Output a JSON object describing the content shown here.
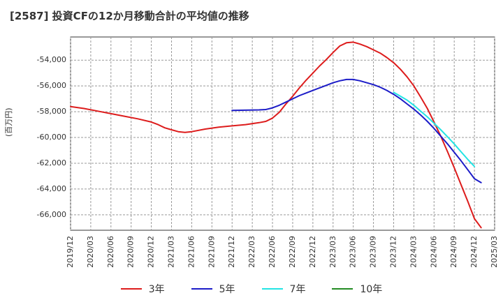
{
  "title": "[2587]  投資CFの12か月移動合計の平均値の推移",
  "chart_data": {
    "type": "line",
    "title": "[2587]  投資CFの12か月移動合計の平均値の推移",
    "ylabel": "(百万円)",
    "xlabel": "",
    "ylim": [
      -67200,
      -52200
    ],
    "yticks": [
      -54000,
      -56000,
      -58000,
      -60000,
      -62000,
      -64000,
      -66000
    ],
    "ytick_labels": [
      "-54,000",
      "-56,000",
      "-58,000",
      "-60,000",
      "-62,000",
      "-64,000",
      "-66,000"
    ],
    "xlim": [
      "2019/12",
      "2025/03"
    ],
    "xtick_labels": [
      "2019/12",
      "2020/03",
      "2020/06",
      "2020/09",
      "2020/12",
      "2021/03",
      "2021/06",
      "2021/09",
      "2021/12",
      "2022/03",
      "2022/06",
      "2022/09",
      "2022/12",
      "2023/03",
      "2023/06",
      "2023/09",
      "2023/12",
      "2024/03",
      "2024/06",
      "2024/09",
      "2024/12",
      "2025/03"
    ],
    "grid": true,
    "legend_position": "bottom",
    "series": [
      {
        "name": "3年",
        "color": "#dd1c1c",
        "points": [
          [
            "2019/12",
            -57600
          ],
          [
            "2020/02",
            -57750
          ],
          [
            "2020/04",
            -57950
          ],
          [
            "2020/06",
            -58150
          ],
          [
            "2020/08",
            -58350
          ],
          [
            "2020/10",
            -58550
          ],
          [
            "2020/12",
            -58800
          ],
          [
            "2021/01",
            -59000
          ],
          [
            "2021/02",
            -59250
          ],
          [
            "2021/03",
            -59400
          ],
          [
            "2021/04",
            -59550
          ],
          [
            "2021/05",
            -59600
          ],
          [
            "2021/06",
            -59550
          ],
          [
            "2021/08",
            -59350
          ],
          [
            "2021/10",
            -59200
          ],
          [
            "2021/12",
            -59100
          ],
          [
            "2022/02",
            -59000
          ],
          [
            "2022/04",
            -58850
          ],
          [
            "2022/05",
            -58750
          ],
          [
            "2022/06",
            -58500
          ],
          [
            "2022/07",
            -58050
          ],
          [
            "2022/08",
            -57400
          ],
          [
            "2022/09",
            -56800
          ],
          [
            "2022/10",
            -56150
          ],
          [
            "2022/11",
            -55550
          ],
          [
            "2022/12",
            -55000
          ],
          [
            "2023/01",
            -54450
          ],
          [
            "2023/02",
            -53950
          ],
          [
            "2023/03",
            -53400
          ],
          [
            "2023/04",
            -52900
          ],
          [
            "2023/05",
            -52650
          ],
          [
            "2023/06",
            -52600
          ],
          [
            "2023/07",
            -52750
          ],
          [
            "2023/08",
            -52950
          ],
          [
            "2023/09",
            -53200
          ],
          [
            "2023/10",
            -53450
          ],
          [
            "2023/11",
            -53800
          ],
          [
            "2023/12",
            -54200
          ],
          [
            "2024/01",
            -54700
          ],
          [
            "2024/02",
            -55300
          ],
          [
            "2024/03",
            -56000
          ],
          [
            "2024/04",
            -56850
          ],
          [
            "2024/05",
            -57750
          ],
          [
            "2024/06",
            -58800
          ],
          [
            "2024/07",
            -59900
          ],
          [
            "2024/08",
            -61100
          ],
          [
            "2024/09",
            -62350
          ],
          [
            "2024/10",
            -63650
          ],
          [
            "2024/11",
            -64950
          ],
          [
            "2024/12",
            -66300
          ],
          [
            "2025/01",
            -67000
          ]
        ]
      },
      {
        "name": "5年",
        "color": "#1c1cc8",
        "points": [
          [
            "2021/12",
            -57900
          ],
          [
            "2022/02",
            -57880
          ],
          [
            "2022/04",
            -57860
          ],
          [
            "2022/05",
            -57830
          ],
          [
            "2022/06",
            -57700
          ],
          [
            "2022/07",
            -57500
          ],
          [
            "2022/08",
            -57250
          ],
          [
            "2022/09",
            -57000
          ],
          [
            "2022/10",
            -56750
          ],
          [
            "2022/11",
            -56550
          ],
          [
            "2022/12",
            -56350
          ],
          [
            "2023/01",
            -56150
          ],
          [
            "2023/02",
            -55950
          ],
          [
            "2023/03",
            -55750
          ],
          [
            "2023/04",
            -55600
          ],
          [
            "2023/05",
            -55500
          ],
          [
            "2023/06",
            -55500
          ],
          [
            "2023/07",
            -55600
          ],
          [
            "2023/08",
            -55750
          ],
          [
            "2023/09",
            -55900
          ],
          [
            "2023/10",
            -56100
          ],
          [
            "2023/11",
            -56350
          ],
          [
            "2023/12",
            -56650
          ],
          [
            "2024/01",
            -57000
          ],
          [
            "2024/02",
            -57400
          ],
          [
            "2024/03",
            -57800
          ],
          [
            "2024/04",
            -58250
          ],
          [
            "2024/05",
            -58750
          ],
          [
            "2024/06",
            -59300
          ],
          [
            "2024/07",
            -59900
          ],
          [
            "2024/08",
            -60500
          ],
          [
            "2024/09",
            -61150
          ],
          [
            "2024/10",
            -61800
          ],
          [
            "2024/11",
            -62500
          ],
          [
            "2024/12",
            -63200
          ],
          [
            "2025/01",
            -63500
          ]
        ]
      },
      {
        "name": "7年",
        "color": "#22e4e4",
        "points": [
          [
            "2023/12",
            -56500
          ],
          [
            "2024/01",
            -56800
          ],
          [
            "2024/02",
            -57100
          ],
          [
            "2024/03",
            -57500
          ],
          [
            "2024/04",
            -57950
          ],
          [
            "2024/05",
            -58400
          ],
          [
            "2024/06",
            -58900
          ],
          [
            "2024/07",
            -59400
          ],
          [
            "2024/08",
            -59950
          ],
          [
            "2024/09",
            -60500
          ],
          [
            "2024/10",
            -61100
          ],
          [
            "2024/11",
            -61700
          ],
          [
            "2024/12",
            -62250
          ]
        ]
      },
      {
        "name": "10年",
        "color": "#228b22",
        "points": []
      }
    ]
  }
}
